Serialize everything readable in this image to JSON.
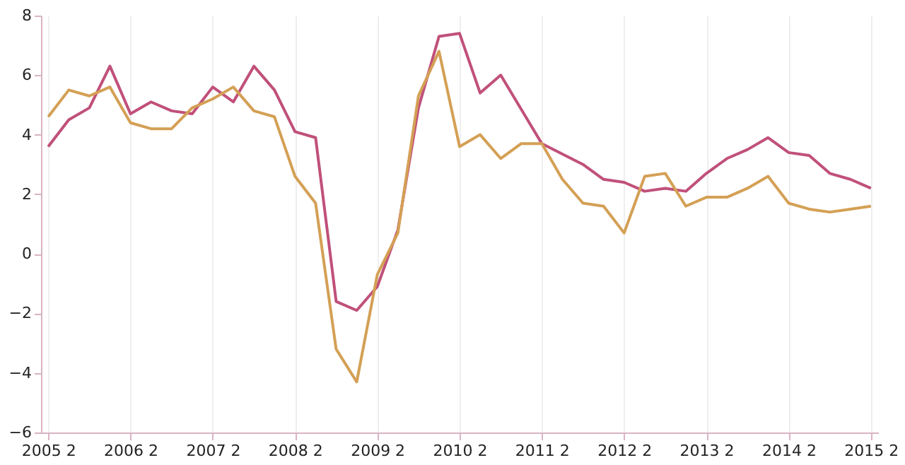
{
  "chart_data": {
    "type": "line",
    "categories": [
      "2005 2",
      null,
      null,
      null,
      "2006 2",
      null,
      null,
      null,
      "2007 2",
      null,
      null,
      null,
      "2008 2",
      null,
      null,
      null,
      "2009 2",
      null,
      null,
      null,
      "2010 2",
      null,
      null,
      null,
      "2011 2",
      null,
      null,
      null,
      "2012 2",
      null,
      null,
      null,
      "2013 2",
      null,
      null,
      null,
      "2014 2",
      null,
      null,
      null,
      "2015 2"
    ],
    "series": [
      {
        "color": "#c0507a",
        "values": [
          3.6,
          4.5,
          4.9,
          6.3,
          4.7,
          5.1,
          4.8,
          4.7,
          5.6,
          5.1,
          6.3,
          5.5,
          4.1,
          3.9,
          -1.6,
          -1.9,
          -1.1,
          0.8,
          4.9,
          7.3,
          7.4,
          5.4,
          6.0,
          4.85,
          3.7,
          3.35,
          3.0,
          2.5,
          2.4,
          2.1,
          2.2,
          2.1,
          2.7,
          3.2,
          3.5,
          3.9,
          3.4,
          3.3,
          2.7,
          2.5,
          2.2
        ]
      },
      {
        "color": "#d4a055",
        "values": [
          4.6,
          5.5,
          5.3,
          5.6,
          4.4,
          4.2,
          4.2,
          4.9,
          5.2,
          5.6,
          4.8,
          4.6,
          2.6,
          1.7,
          -3.2,
          -4.3,
          -0.7,
          0.7,
          5.3,
          6.8,
          3.6,
          4.0,
          3.2,
          3.7,
          3.7,
          2.5,
          1.7,
          1.6,
          0.7,
          2.6,
          2.7,
          1.6,
          1.9,
          1.9,
          2.2,
          2.6,
          1.7,
          1.5,
          1.4,
          1.5,
          1.6
        ]
      }
    ],
    "ylim": [
      -6,
      8
    ],
    "yticks": [
      -6,
      -4,
      -2,
      0,
      2,
      4,
      6,
      8
    ],
    "grid": "x",
    "legend": false
  }
}
